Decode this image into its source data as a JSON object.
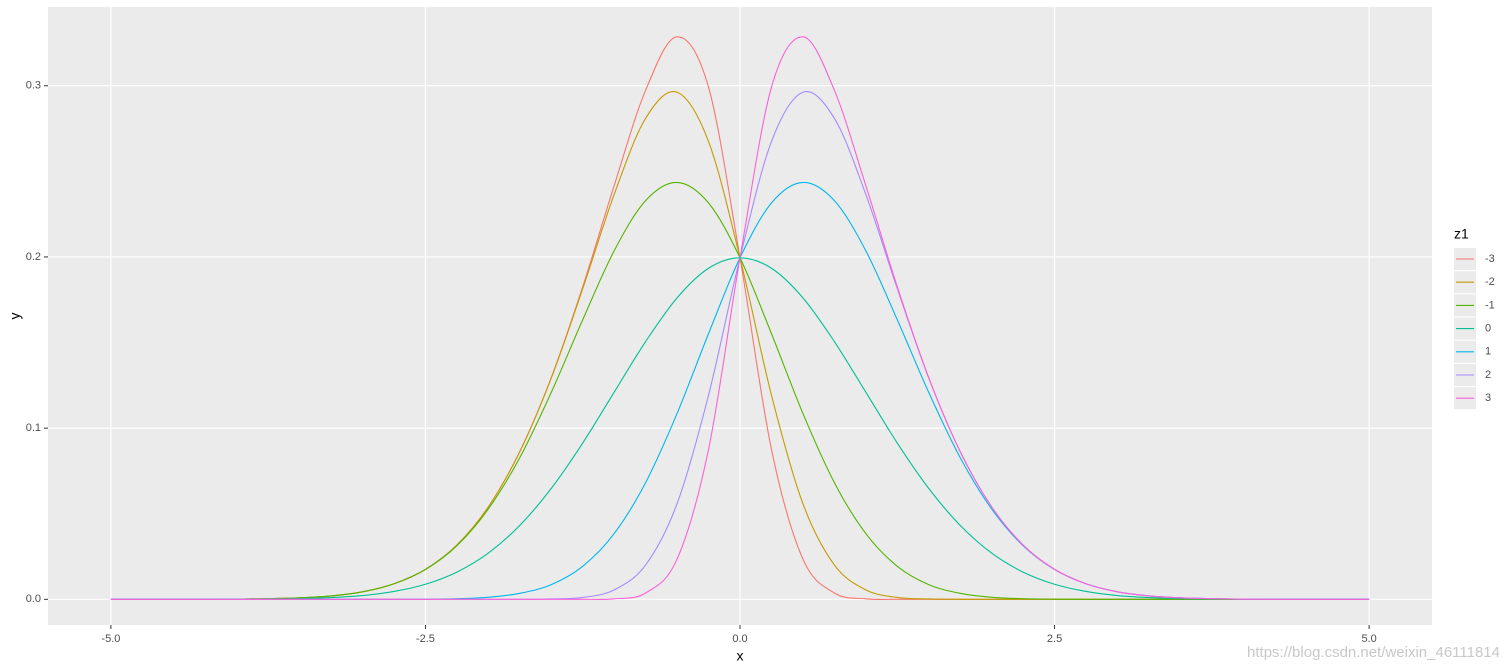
{
  "chart_data": {
    "type": "line",
    "x": [
      -5,
      -4.75,
      -4.5,
      -4.25,
      -4,
      -3.75,
      -3.5,
      -3.25,
      -3,
      -2.75,
      -2.5,
      -2.25,
      -2,
      -1.75,
      -1.5,
      -1.25,
      -1,
      -0.75,
      -0.5,
      -0.25,
      0,
      0.25,
      0.5,
      0.75,
      1,
      1.25,
      1.5,
      1.75,
      2,
      2.25,
      2.5,
      2.75,
      3,
      3.25,
      3.5,
      3.75,
      4,
      4.25,
      4.5,
      4.75,
      5
    ],
    "series": [
      {
        "name": "-3",
        "color": "#F8766D",
        "values": [
          0,
          0,
          0,
          0,
          0.0001,
          0.0004,
          0.0009,
          0.002,
          0.0044,
          0.0091,
          0.0175,
          0.0317,
          0.054,
          0.0863,
          0.1295,
          0.1826,
          0.2417,
          0.2974,
          0.3286,
          0.2991,
          0.1995,
          0.0876,
          0.0235,
          0.0037,
          0.0003,
          0,
          0,
          0,
          0,
          0,
          0,
          0,
          0,
          0,
          0,
          0,
          0,
          0,
          0,
          0,
          0
        ]
      },
      {
        "name": "-2",
        "color": "#C49A00",
        "values": [
          0,
          0,
          0,
          0,
          0.0001,
          0.0004,
          0.0009,
          0.002,
          0.0044,
          0.0091,
          0.0175,
          0.0317,
          0.054,
          0.0863,
          0.1293,
          0.1815,
          0.2365,
          0.281,
          0.2962,
          0.2674,
          0.1995,
          0.1193,
          0.0559,
          0.0201,
          0.0055,
          0.0011,
          0.0002,
          0,
          0,
          0,
          0,
          0,
          0,
          0,
          0,
          0,
          0,
          0,
          0,
          0,
          0
        ]
      },
      {
        "name": "-1",
        "color": "#53B400",
        "values": [
          0,
          0,
          0,
          0,
          0.0001,
          0.0004,
          0.0009,
          0.002,
          0.0044,
          0.0091,
          0.0174,
          0.0313,
          0.0528,
          0.0828,
          0.1209,
          0.1633,
          0.2036,
          0.2329,
          0.2435,
          0.2315,
          0.1995,
          0.1552,
          0.1086,
          0.0682,
          0.0384,
          0.0193,
          0.0086,
          0.0035,
          0.0012,
          0.0004,
          0.0001,
          0,
          0,
          0,
          0,
          0,
          0,
          0,
          0,
          0,
          0
        ]
      },
      {
        "name": "0",
        "color": "#00C094",
        "values": [
          0,
          0,
          0,
          0,
          0.0001,
          0.0002,
          0.0004,
          0.001,
          0.0022,
          0.0046,
          0.0088,
          0.0159,
          0.027,
          0.0432,
          0.0648,
          0.0913,
          0.121,
          0.1506,
          0.1761,
          0.1934,
          0.1995,
          0.1934,
          0.1761,
          0.1506,
          0.121,
          0.0913,
          0.0648,
          0.0432,
          0.027,
          0.0159,
          0.0088,
          0.0046,
          0.0022,
          0.001,
          0.0004,
          0.0002,
          0.0001,
          0,
          0,
          0,
          0
        ]
      },
      {
        "name": "1",
        "color": "#00B6EB",
        "values": [
          0,
          0,
          0,
          0,
          0,
          0,
          0,
          0,
          0,
          0,
          0.0001,
          0.0004,
          0.0012,
          0.0035,
          0.0086,
          0.0193,
          0.0384,
          0.0682,
          0.1086,
          0.1552,
          0.1995,
          0.2315,
          0.2435,
          0.2329,
          0.2036,
          0.1633,
          0.1209,
          0.0828,
          0.0528,
          0.0313,
          0.0174,
          0.0091,
          0.0044,
          0.002,
          0.0009,
          0.0004,
          0.0001,
          0,
          0,
          0,
          0
        ]
      },
      {
        "name": "2",
        "color": "#A58AFF",
        "values": [
          0,
          0,
          0,
          0,
          0,
          0,
          0,
          0,
          0,
          0,
          0,
          0,
          0,
          0,
          0.0002,
          0.0011,
          0.0055,
          0.0201,
          0.0559,
          0.1193,
          0.1995,
          0.2674,
          0.2962,
          0.281,
          0.2365,
          0.1815,
          0.1293,
          0.0863,
          0.054,
          0.0317,
          0.0175,
          0.0091,
          0.0044,
          0.002,
          0.0009,
          0.0004,
          0.0001,
          0,
          0,
          0,
          0
        ]
      },
      {
        "name": "3",
        "color": "#FB61D7",
        "values": [
          0,
          0,
          0,
          0,
          0,
          0,
          0,
          0,
          0,
          0,
          0,
          0,
          0,
          0,
          0,
          0,
          0.0003,
          0.0037,
          0.0235,
          0.0876,
          0.1995,
          0.2991,
          0.3286,
          0.2974,
          0.2417,
          0.1826,
          0.1295,
          0.0863,
          0.054,
          0.0317,
          0.0175,
          0.0091,
          0.0044,
          0.002,
          0.0009,
          0.0004,
          0.0001,
          0,
          0,
          0,
          0
        ]
      }
    ],
    "x_label": "x",
    "y_label": "y",
    "legend_title": "z1",
    "xlim": [
      -5.5,
      5.5
    ],
    "xticks": [
      {
        "value": -5,
        "label": "-5.0"
      },
      -2.5,
      {
        "value": 0,
        "label": "0.0"
      },
      2.5,
      {
        "value": 5,
        "label": "5.0"
      }
    ],
    "ylim": [
      -0.015,
      0.346
    ],
    "yticks": [
      {
        "value": 0,
        "label": "0.0"
      },
      0.1,
      0.2,
      0.3
    ],
    "grid": true,
    "legend": "right",
    "watermark": "https://blog.csdn.net/weixin_46111814"
  }
}
